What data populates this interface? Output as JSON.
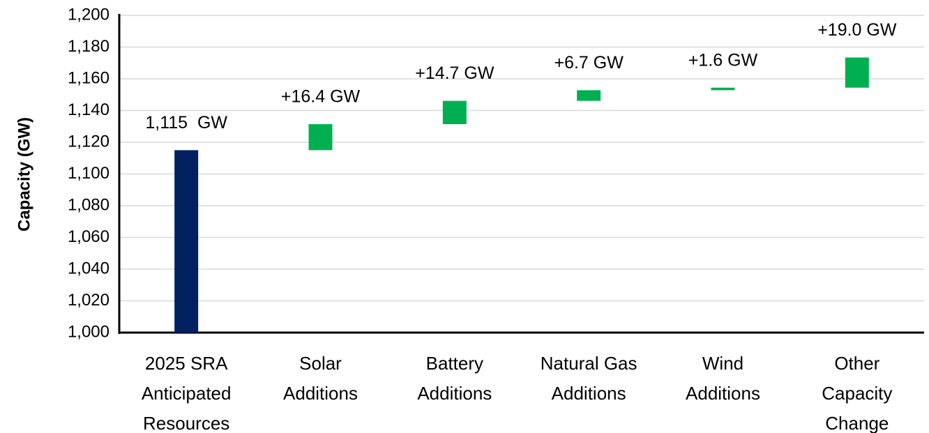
{
  "chart_data": {
    "type": "waterfall",
    "y_label": "Capacity (GW)",
    "categories": [
      "2025 SRA\nAnticipated\nResources",
      "Solar\nAdditions",
      "Battery\nAdditions",
      "Natural Gas\nAdditions",
      "Wind\nAdditions",
      "Other\nCapacity\nChange"
    ],
    "values": [
      1115,
      16.4,
      14.7,
      6.7,
      1.6,
      19.0
    ],
    "value_labels": [
      "1,115  GW",
      "+16.4 GW",
      "+14.7 GW",
      "+6.7 GW",
      "+1.6 GW",
      "+19.0 GW"
    ],
    "colors": [
      "#002060",
      "#00b050",
      "#00b050",
      "#00b050",
      "#00b050",
      "#00b050"
    ],
    "ylim": [
      1000,
      1200
    ],
    "yticks": [
      {
        "value": 1000,
        "label": "1,000"
      },
      {
        "value": 1020,
        "label": "1,020"
      },
      {
        "value": 1040,
        "label": "1,040"
      },
      {
        "value": 1060,
        "label": "1,060"
      },
      {
        "value": 1080,
        "label": "1,080"
      },
      {
        "value": 1100,
        "label": "1,100"
      },
      {
        "value": 1120,
        "label": "1,120"
      },
      {
        "value": 1140,
        "label": "1,140"
      },
      {
        "value": 1160,
        "label": "1,160"
      },
      {
        "value": 1180,
        "label": "1,180"
      },
      {
        "value": 1200,
        "label": "1,200"
      }
    ],
    "grid": true
  }
}
